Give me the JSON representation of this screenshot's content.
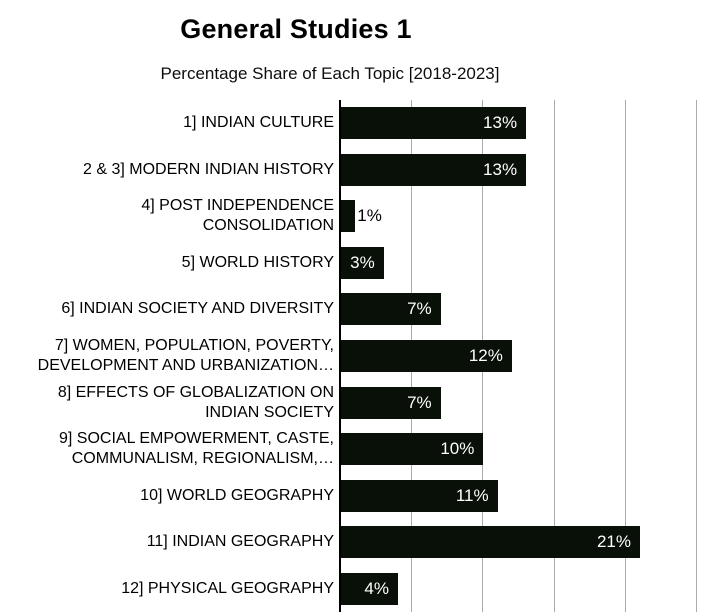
{
  "chart_data": {
    "type": "bar",
    "orientation": "horizontal",
    "title": "General Studies 1",
    "subtitle": "Percentage Share of Each Topic [2018-2023]",
    "categories": [
      "1] INDIAN CULTURE",
      "2 & 3] MODERN INDIAN HISTORY",
      "4] POST INDEPENDENCE CONSOLIDATION",
      "5] WORLD HISTORY",
      "6] INDIAN SOCIETY AND DIVERSITY",
      "7] WOMEN, POPULATION, POVERTY, DEVELOPMENT  AND URBANIZATION…",
      "8] EFFECTS OF GLOBALIZATION  ON INDIAN SOCIETY",
      "9] SOCIAL EMPOWERMENT, CASTE, COMMUNALISM, REGIONALISM,…",
      "10] WORLD GEOGRAPHY",
      "11] INDIAN GEOGRAPHY",
      "12] PHYSICAL GEOGRAPHY"
    ],
    "values": [
      13,
      13,
      1,
      3,
      7,
      12,
      7,
      10,
      11,
      21,
      4
    ],
    "data_labels": [
      "13%",
      "13%",
      "1%",
      "3%",
      "7%",
      "12%",
      "7%",
      "10%",
      "11%",
      "21%",
      "4%"
    ],
    "xlim": [
      0,
      26.9
    ],
    "gridline_interval": 5,
    "grid": "vertical-only",
    "legend": "none",
    "x_axis_tick_labels_visible": false
  },
  "display": {
    "category_lines": [
      [
        "1] INDIAN CULTURE"
      ],
      [
        "2 & 3] MODERN INDIAN HISTORY"
      ],
      [
        "4] POST INDEPENDENCE",
        "CONSOLIDATION"
      ],
      [
        "5] WORLD HISTORY"
      ],
      [
        "6] INDIAN SOCIETY AND DIVERSITY"
      ],
      [
        "7] WOMEN, POPULATION, POVERTY,",
        "DEVELOPMENT  AND URBANIZATION…"
      ],
      [
        "8] EFFECTS OF GLOBALIZATION  ON",
        "INDIAN SOCIETY"
      ],
      [
        "9] SOCIAL EMPOWERMENT, CASTE,",
        "COMMUNALISM, REGIONALISM,…"
      ],
      [
        "10] WORLD GEOGRAPHY"
      ],
      [
        "11] INDIAN GEOGRAPHY"
      ],
      [
        "12] PHYSICAL GEOGRAPHY"
      ]
    ],
    "value_label_placement": [
      "inside",
      "inside",
      "outside",
      "inside",
      "inside",
      "inside",
      "inside",
      "inside",
      "inside",
      "inside",
      "inside"
    ],
    "colors": {
      "bar": "#081007",
      "gridline": "#ababab",
      "axis": "#000000",
      "value_label_inside": "#ffffff",
      "value_label_outside": "#000000"
    }
  }
}
